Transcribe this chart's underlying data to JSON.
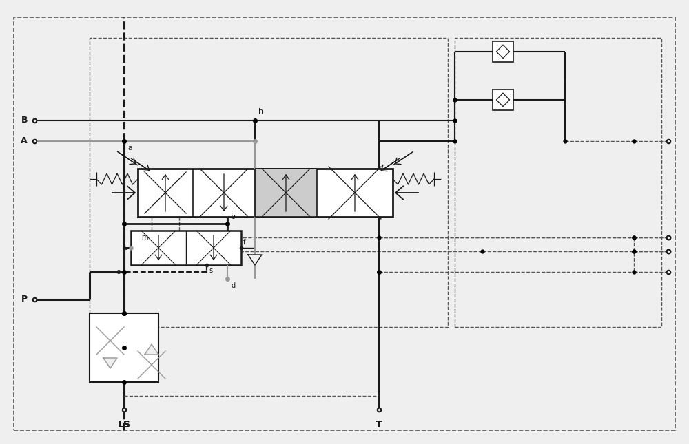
{
  "bg_color": "#efefef",
  "lc": "#1a1a1a",
  "gc": "#999999",
  "dc": "#555555",
  "figsize": [
    10.0,
    6.45
  ],
  "dpi": 100,
  "xlim": [
    0,
    100
  ],
  "ylim": [
    0,
    64.5
  ]
}
